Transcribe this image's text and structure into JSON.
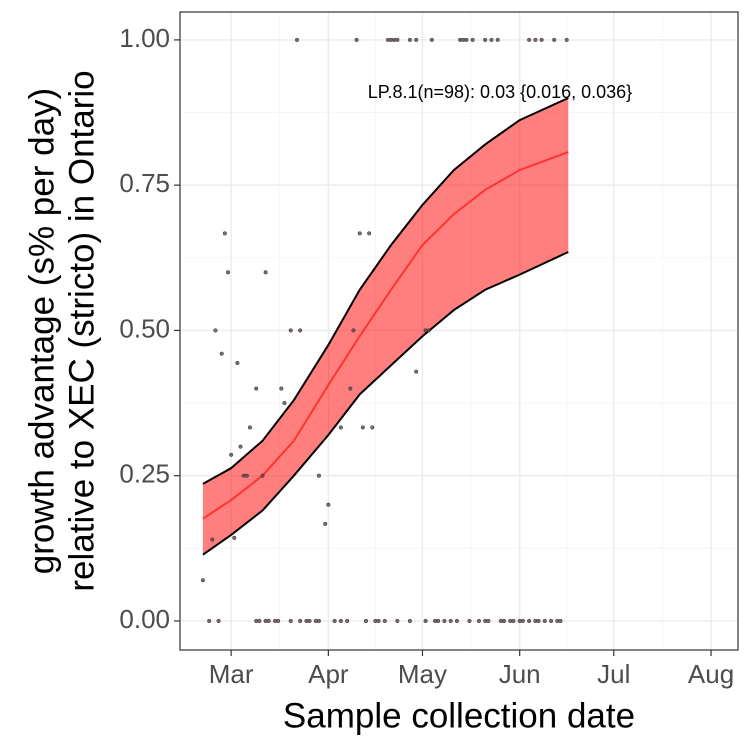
{
  "chart_data": {
    "type": "scatter",
    "annotation": "LP.8.1(n=98): 0.03 {0.016, 0.036}",
    "xlabel": "Sample collection date",
    "ylabel": [
      "growth advantage (s% per day)",
      "relative to XEC (stricto) in Ontario"
    ],
    "xlim": [
      -16.3,
      161.6
    ],
    "xticks": [
      {
        "value": 0,
        "label": "Mar"
      },
      {
        "value": 31,
        "label": "Apr"
      },
      {
        "value": 61,
        "label": "May"
      },
      {
        "value": 92,
        "label": "Jun"
      },
      {
        "value": 122,
        "label": "Jul"
      },
      {
        "value": 153,
        "label": "Aug"
      }
    ],
    "ylim": [
      -0.05,
      1.048
    ],
    "yticks": [
      {
        "value": 0,
        "label": "0.00"
      },
      {
        "value": 0.25,
        "label": "0.25"
      },
      {
        "value": 0.5,
        "label": "0.50"
      },
      {
        "value": 0.75,
        "label": "0.75"
      },
      {
        "value": 1,
        "label": "1.00"
      }
    ],
    "grid": true,
    "point_color": "#5a4a4a",
    "x": [
      21,
      40,
      50,
      51,
      52,
      53,
      57,
      59,
      64,
      73,
      74,
      75,
      77,
      81,
      83,
      85,
      95,
      97,
      99,
      103,
      107,
      -7,
      -4,
      8,
      9,
      11,
      12,
      14,
      15,
      19,
      22,
      24,
      25,
      27,
      28,
      33,
      35,
      37,
      43,
      46,
      47,
      49,
      53,
      57,
      62,
      65,
      66,
      68,
      70,
      72,
      76,
      79,
      81,
      82,
      86,
      87,
      89,
      90,
      92,
      93,
      95,
      97,
      98,
      100,
      102,
      104,
      105,
      -9,
      -6,
      -5,
      -3,
      -2,
      -1,
      0,
      1,
      2,
      3,
      4,
      5,
      6,
      8,
      10,
      11,
      16,
      17,
      19,
      22,
      28,
      30,
      31,
      35,
      38,
      39,
      41,
      42,
      44,
      45,
      59,
      62,
      63
    ],
    "values": [
      1,
      1,
      1,
      1,
      1,
      1,
      1,
      1,
      1,
      1,
      1,
      1,
      1,
      1,
      1,
      1,
      1,
      1,
      1,
      1,
      1,
      0,
      0,
      0,
      0,
      0,
      0,
      0,
      0,
      0,
      0,
      0,
      0,
      0,
      0,
      0,
      0,
      0,
      0,
      0,
      0,
      0,
      0,
      0,
      0,
      0,
      0,
      0,
      0,
      0,
      0,
      0,
      0,
      0,
      0,
      0,
      0,
      0,
      0,
      0,
      0,
      0,
      0,
      0,
      0,
      0,
      0,
      0.07,
      0.14,
      0.5,
      0.46,
      0.667,
      0.6,
      0.286,
      0.143,
      0.444,
      0.3,
      0.25,
      0.25,
      0.333,
      0.4,
      0.25,
      0.6,
      0.4,
      0.375,
      0.5,
      0.5,
      0.25,
      0.167,
      0.2,
      0.333,
      0.4,
      0.5,
      0.667,
      0.333,
      0.667,
      0.333,
      0.429,
      0.5,
      0.5
    ],
    "fit": {
      "color": "#ff0000",
      "x": [
        -9,
        0,
        10,
        20,
        31,
        41,
        51,
        61,
        71,
        81,
        92,
        107.5
      ],
      "values": [
        0.176,
        0.208,
        0.25,
        0.31,
        0.406,
        0.49,
        0.57,
        0.647,
        0.7,
        0.742,
        0.776,
        0.807
      ],
      "lower": [
        0.114,
        0.148,
        0.19,
        0.25,
        0.32,
        0.39,
        0.44,
        0.49,
        0.535,
        0.57,
        0.596,
        0.635
      ],
      "upper": [
        0.236,
        0.263,
        0.31,
        0.38,
        0.475,
        0.57,
        0.647,
        0.716,
        0.776,
        0.82,
        0.862,
        0.9
      ]
    }
  }
}
